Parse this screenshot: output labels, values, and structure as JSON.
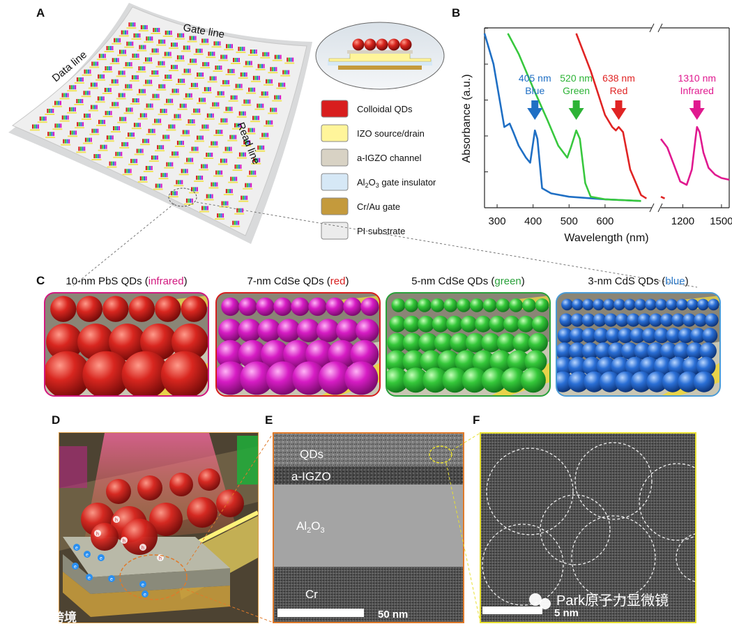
{
  "panel_labels": {
    "a": "A",
    "b": "B",
    "c": "C",
    "d": "D",
    "e": "E",
    "f": "F"
  },
  "panel_a": {
    "gate_line": "Gate line",
    "data_line": "Data line",
    "read_line": "Read line",
    "legend": [
      {
        "label": "Colloidal QDs",
        "color": "#d81e1e"
      },
      {
        "label": "IZO source/drain",
        "color": "#fff59a"
      },
      {
        "label": "a-IGZO channel",
        "color": "#d8d2c4"
      },
      {
        "label_pre": "Al",
        "label_sub1": "2",
        "label_mid": "O",
        "label_sub2": "3",
        "label_post": " gate insulator",
        "color": "#d6e8f6"
      },
      {
        "label": "Cr/Au gate",
        "color": "#c49a3c"
      },
      {
        "label": "PI substrate",
        "color": "#ececec"
      }
    ]
  },
  "chart_data": {
    "type": "line",
    "xlabel": "Wavelength (nm)",
    "ylabel": "Absorbance (a.u.)",
    "x_ticks": [
      "300",
      "400",
      "500",
      "600",
      "1200",
      "1500"
    ],
    "axis_break": true,
    "series": [
      {
        "color": "#1f6fc4",
        "x": [
          265,
          290,
          320,
          335,
          345,
          360,
          380,
          392,
          405,
          412,
          425,
          450,
          500,
          600,
          700
        ],
        "y": [
          1.0,
          0.82,
          0.45,
          0.47,
          0.42,
          0.34,
          0.27,
          0.24,
          0.43,
          0.38,
          0.09,
          0.06,
          0.04,
          0.025,
          0.015
        ]
      },
      {
        "color": "#38c83e",
        "x": [
          330,
          360,
          400,
          440,
          470,
          495,
          505,
          520,
          530,
          545,
          560,
          600,
          650,
          700
        ],
        "y": [
          1.0,
          0.88,
          0.68,
          0.49,
          0.34,
          0.27,
          0.33,
          0.43,
          0.38,
          0.12,
          0.04,
          0.025,
          0.02,
          0.015
        ]
      },
      {
        "color": "#e02424",
        "x": [
          520,
          560,
          600,
          620,
          630,
          638,
          650,
          670,
          700,
          715
        ],
        "y": [
          1.0,
          0.78,
          0.52,
          0.45,
          0.43,
          0.45,
          0.42,
          0.2,
          0.05,
          0.03
        ],
        "x_after_break": [
          1030,
          1060
        ],
        "y_after_break": [
          0.04,
          0.03
        ]
      },
      {
        "color": "#e0198f",
        "x": [
          1030,
          1080,
          1130,
          1180,
          1230,
          1270,
          1300,
          1310,
          1330,
          1360,
          1400,
          1450,
          1500,
          1560
        ],
        "y": [
          0.38,
          0.33,
          0.23,
          0.13,
          0.11,
          0.2,
          0.39,
          0.45,
          0.42,
          0.3,
          0.21,
          0.17,
          0.15,
          0.14
        ]
      }
    ],
    "annotations": [
      {
        "value": "405 nm",
        "name": "Blue",
        "color": "#1f6fc4",
        "x": 405
      },
      {
        "value": "520 nm",
        "name": "Green",
        "color": "#2db336",
        "x": 520
      },
      {
        "value": "638 nm",
        "name": "Red",
        "color": "#e02424",
        "x": 638
      },
      {
        "value": "1310 nm",
        "name": "Infrared",
        "color": "#e0198f",
        "x": 1310
      }
    ]
  },
  "panel_c": [
    {
      "pre": "10-nm PbS QDs (",
      "word": "infrared",
      "post": ")",
      "color": "#d2187f",
      "ball": "#d0201f",
      "border": "#d2187f"
    },
    {
      "pre": "7-nm CdSe QDs (",
      "word": "red",
      "post": ")",
      "color": "#d81e1e",
      "ball": "#d61cc4",
      "border": "#d81e1e"
    },
    {
      "pre": "5-nm CdSe QDs (",
      "word": "green",
      "post": ")",
      "color": "#29a13a",
      "ball": "#35c83a",
      "border": "#29a13a"
    },
    {
      "pre": "3-nm CdS QDs (",
      "word": "blue",
      "post": ")",
      "color": "#2a78c8",
      "ball": "#2a6fd6",
      "border": "#4a9bd6"
    }
  ],
  "panel_d": {
    "hole": "h",
    "electron": "e"
  },
  "panel_e": {
    "qds": "QDs",
    "igzo": "a-IGZO",
    "al_pre": "Al",
    "al_sub1": "2",
    "al_mid": "O",
    "al_sub2": "3",
    "cr": "Cr",
    "scale": "50 nm"
  },
  "panel_f": {
    "scale": "5 nm"
  },
  "watermarks": {
    "left": "大数跨境",
    "right": "Park原子力显微镜"
  }
}
